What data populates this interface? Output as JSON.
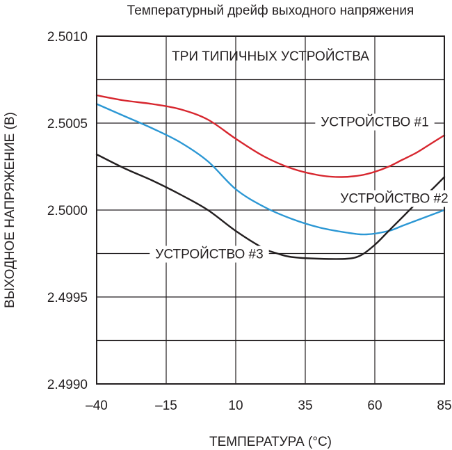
{
  "chart_data": {
    "type": "line",
    "title": "Температурный дрейф выходного напряжения",
    "subtitle": "ТРИ ТИПИЧНЫХ УСТРОЙСТВА",
    "xlabel": "ТЕМПЕРАТУРА (°C)",
    "ylabel": "ВЫХОДНОЕ НАПРЯЖЕНИЕ (В)",
    "xlim": [
      -40,
      85
    ],
    "ylim": [
      2.499,
      2.501
    ],
    "x_ticks": [
      -40,
      -15,
      10,
      35,
      60,
      85
    ],
    "x_tick_labels": [
      "–40",
      "–15",
      "10",
      "35",
      "60",
      "85"
    ],
    "y_ticks": [
      2.499,
      2.4995,
      2.5,
      2.5005,
      2.501
    ],
    "y_tick_labels": [
      "2.4990",
      "2.4995",
      "2.5000",
      "2.5005",
      "2.5010"
    ],
    "grid": true,
    "series": [
      {
        "name": "УСТРОЙСТВО #1",
        "color": "#d7262e",
        "label_at": [
          60,
          2.50051
        ],
        "x": [
          -40,
          -30,
          -20,
          -10,
          0,
          10,
          20,
          30,
          40,
          48,
          55,
          60,
          65,
          70,
          75,
          80,
          85
        ],
        "y": [
          2.50066,
          2.50063,
          2.50061,
          2.50058,
          2.50052,
          2.50041,
          2.50031,
          2.50024,
          2.5002,
          2.50019,
          2.5002,
          2.50022,
          2.50025,
          2.50029,
          2.50033,
          2.50038,
          2.50043
        ]
      },
      {
        "name": "УСТРОЙСТВО #2",
        "color": "#2b97d4",
        "label_at": [
          67,
          2.50007
        ],
        "x": [
          -40,
          -30,
          -20,
          -10,
          0,
          10,
          20,
          30,
          40,
          50,
          57,
          65,
          70,
          75,
          80,
          85
        ],
        "y": [
          2.50061,
          2.50054,
          2.50047,
          2.50039,
          2.50028,
          2.50012,
          2.50002,
          2.49995,
          2.4999,
          2.49987,
          2.49986,
          2.49988,
          2.49991,
          2.49994,
          2.49997,
          2.5
        ]
      },
      {
        "name": "УСТРОЙСТВО #3",
        "color": "#231f20",
        "label_at": [
          0.5,
          2.49975
        ],
        "x": [
          -40,
          -30,
          -20,
          -10,
          0,
          10,
          20,
          25,
          30,
          40,
          50,
          55,
          60,
          65,
          70,
          75,
          80,
          85
        ],
        "y": [
          2.50032,
          2.50024,
          2.50017,
          2.50009,
          2.5,
          2.49988,
          2.49978,
          2.49975,
          2.49973,
          2.49972,
          2.49972,
          2.49974,
          2.4998,
          2.49988,
          2.49996,
          2.50004,
          2.50011,
          2.50019
        ]
      }
    ]
  }
}
